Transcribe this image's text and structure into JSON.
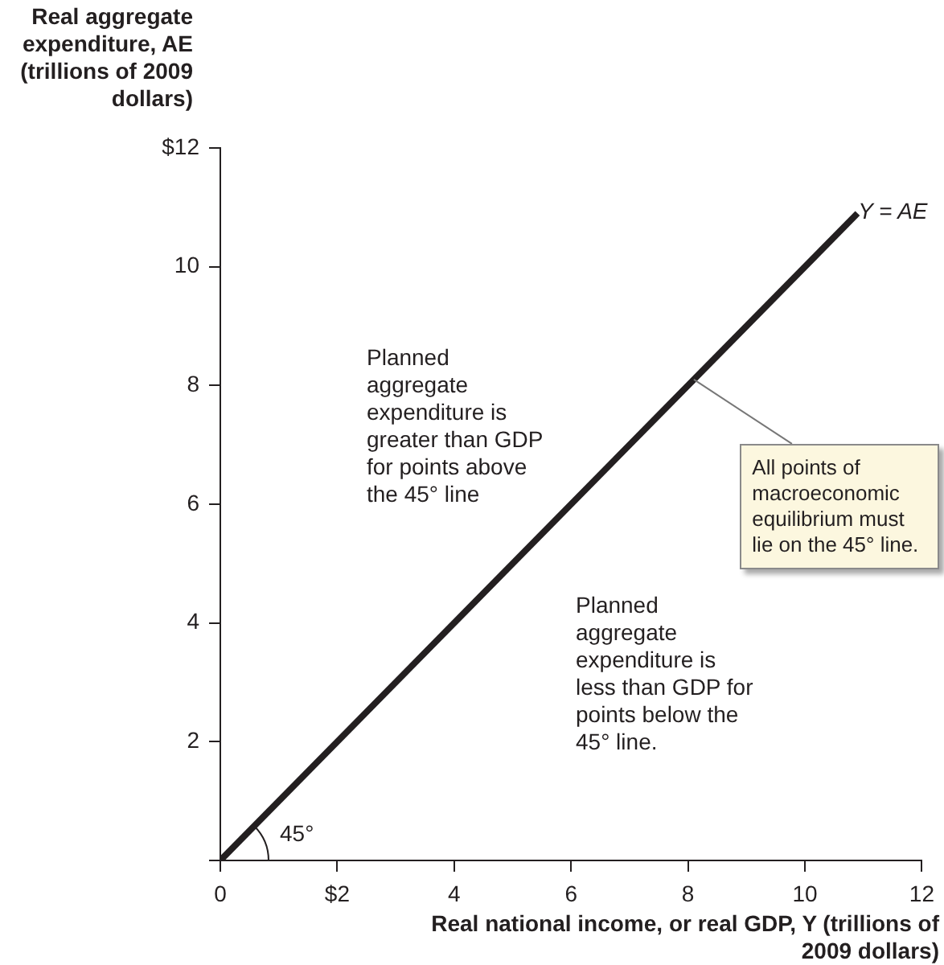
{
  "chart_data": {
    "type": "line",
    "xlabel": "Real national income, or real GDP, Y (trillions of 2009 dollars)",
    "ylabel": "Real aggregate expenditure, AE (trillions of 2009 dollars)",
    "x": [
      0,
      10.9
    ],
    "series": [
      {
        "color": "#231f20",
        "values": [
          0,
          10.9
        ]
      }
    ],
    "xlim": [
      0,
      12
    ],
    "ylim": [
      0,
      12
    ],
    "xticks": [
      0,
      {
        "value": 2,
        "label": "$2"
      },
      4,
      6,
      8,
      10,
      12
    ],
    "yticks": [
      {
        "value": 0,
        "label": null
      },
      2,
      4,
      6,
      8,
      10,
      {
        "value": 12,
        "label": "$12"
      }
    ],
    "grid": false,
    "legend": false,
    "marker": "none",
    "line_style": "solid",
    "annotations": [
      {
        "text": "Y = AE",
        "x": 10.9,
        "y": 10.9
      },
      "Planned aggregate expenditure is greater than GDP for points above the 45° line",
      {
        "text": "All points of macroeconomic equilibrium must lie on the 45° line.",
        "x": 8.1,
        "y": 8.1
      },
      "Planned aggregate expenditure is less than GDP for points below the 45° line.",
      "45°"
    ]
  }
}
